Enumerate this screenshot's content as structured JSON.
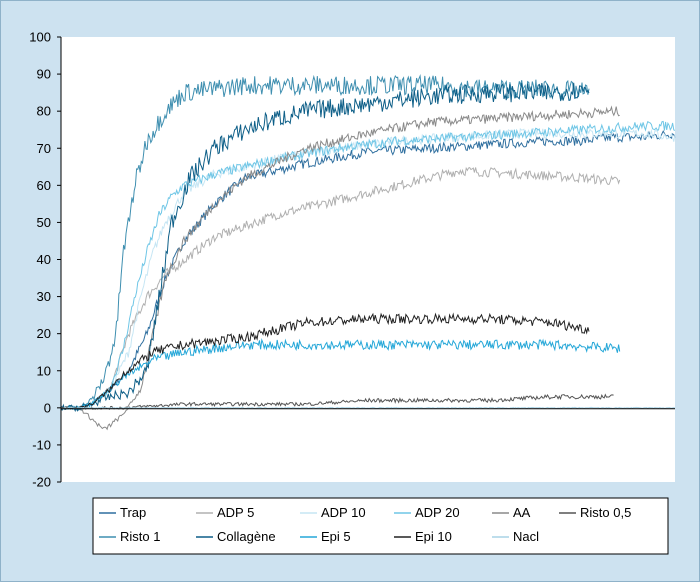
{
  "chart_data": {
    "type": "line",
    "title": "",
    "xlabel": "",
    "ylabel": "",
    "ylim": [
      -20,
      100
    ],
    "yticks": [
      100,
      90,
      80,
      70,
      60,
      50,
      40,
      30,
      20,
      10,
      0,
      -10,
      -20
    ],
    "grid": false,
    "legend_position": "bottom",
    "x_range": [
      0,
      1
    ],
    "series": [
      {
        "name": "Trap",
        "color": "#2f6f9f",
        "x": [
          0,
          0.03,
          0.05,
          0.08,
          0.11,
          0.14,
          0.17,
          0.2,
          0.25,
          0.3,
          0.4,
          0.5,
          0.6,
          0.7,
          0.8,
          0.85,
          0.9,
          0.95,
          1
        ],
        "values": [
          0,
          0,
          1,
          5,
          10,
          20,
          35,
          45,
          55,
          62,
          66,
          69,
          70,
          71,
          72,
          72,
          73,
          73,
          74
        ]
      },
      {
        "name": "ADP 5",
        "color": "#b0b0b0",
        "x": [
          0,
          0.03,
          0.05,
          0.08,
          0.11,
          0.14,
          0.17,
          0.25,
          0.35,
          0.45,
          0.55,
          0.65,
          0.75,
          0.85,
          0.91
        ],
        "values": [
          0,
          0,
          1,
          5,
          20,
          30,
          36,
          46,
          52,
          56,
          60,
          64,
          63,
          62,
          61
        ]
      },
      {
        "name": "ADP 10",
        "color": "#c6e6f4",
        "x": [
          0,
          0.03,
          0.05,
          0.08,
          0.11,
          0.13,
          0.15,
          0.17,
          0.2,
          0.25,
          0.35,
          0.45,
          0.55,
          0.65,
          0.75,
          0.85,
          0.95,
          1
        ],
        "values": [
          0,
          0,
          1,
          5,
          15,
          30,
          42,
          50,
          58,
          63,
          67,
          70,
          72,
          73,
          74,
          74,
          74,
          73
        ]
      },
      {
        "name": "ADP 20",
        "color": "#6fc6e6",
        "x": [
          0,
          0.03,
          0.05,
          0.08,
          0.1,
          0.12,
          0.14,
          0.16,
          0.18,
          0.2,
          0.25,
          0.35,
          0.45,
          0.55,
          0.65,
          0.75,
          0.85,
          0.95,
          1
        ],
        "values": [
          0,
          0,
          1,
          5,
          15,
          30,
          42,
          52,
          57,
          60,
          63,
          67,
          70,
          72,
          73,
          74,
          75,
          76,
          76
        ]
      },
      {
        "name": "AA",
        "color": "#8a8a8a",
        "x": [
          0,
          0.03,
          0.05,
          0.07,
          0.1,
          0.13,
          0.15,
          0.17,
          0.2,
          0.25,
          0.3,
          0.35,
          0.4,
          0.5,
          0.6,
          0.7,
          0.8,
          0.91
        ],
        "values": [
          0,
          0,
          -3,
          -6,
          -2,
          5,
          20,
          35,
          45,
          55,
          62,
          66,
          70,
          74,
          77,
          78,
          79,
          80
        ]
      },
      {
        "name": "Risto 0,5",
        "color": "#555555",
        "x": [
          0,
          0.1,
          0.2,
          0.3,
          0.4,
          0.5,
          0.6,
          0.7,
          0.8,
          0.9
        ],
        "values": [
          0,
          0,
          1,
          1,
          1,
          2,
          2,
          2,
          3,
          3
        ]
      },
      {
        "name": "Risto 1",
        "color": "#3f8fb0",
        "x": [
          0,
          0.03,
          0.05,
          0.07,
          0.09,
          0.1,
          0.12,
          0.14,
          0.17,
          0.2,
          0.25,
          0.3,
          0.35,
          0.4,
          0.5,
          0.6,
          0.7,
          0.8,
          0.86
        ],
        "values": [
          0,
          0,
          2,
          8,
          20,
          40,
          60,
          72,
          80,
          85,
          86,
          87,
          87,
          87,
          87,
          87,
          86,
          86,
          85
        ]
      },
      {
        "name": "Collagène",
        "color": "#0e5f88",
        "x": [
          0,
          0.03,
          0.05,
          0.08,
          0.11,
          0.14,
          0.16,
          0.18,
          0.21,
          0.25,
          0.3,
          0.35,
          0.4,
          0.5,
          0.6,
          0.7,
          0.8,
          0.86
        ],
        "values": [
          0,
          0,
          1,
          3,
          4,
          10,
          30,
          50,
          62,
          70,
          75,
          78,
          80,
          82,
          84,
          85,
          85,
          86
        ]
      },
      {
        "name": "Epi 5",
        "color": "#25a7d8",
        "x": [
          0,
          0.03,
          0.05,
          0.08,
          0.1,
          0.15,
          0.2,
          0.25,
          0.3,
          0.4,
          0.5,
          0.6,
          0.7,
          0.8,
          0.91
        ],
        "values": [
          0,
          0,
          1,
          5,
          8,
          13,
          15,
          16,
          17,
          17,
          17,
          17,
          17,
          17,
          16
        ]
      },
      {
        "name": "Epi 10",
        "color": "#222222",
        "x": [
          0,
          0.03,
          0.05,
          0.08,
          0.1,
          0.15,
          0.2,
          0.25,
          0.3,
          0.35,
          0.4,
          0.5,
          0.6,
          0.7,
          0.8,
          0.86
        ],
        "values": [
          0,
          0,
          1,
          5,
          9,
          15,
          17,
          18,
          19,
          21,
          23,
          24,
          24,
          24,
          23,
          21
        ]
      },
      {
        "name": "Nacl",
        "color": "#a9d3e6",
        "x": [
          0,
          0.1,
          0.2,
          0.3,
          0.4,
          0.5,
          0.6,
          0.7,
          0.8,
          0.9,
          1
        ],
        "values": [
          0,
          0,
          0,
          0,
          0,
          0,
          0,
          0,
          0,
          0,
          0
        ]
      }
    ]
  }
}
